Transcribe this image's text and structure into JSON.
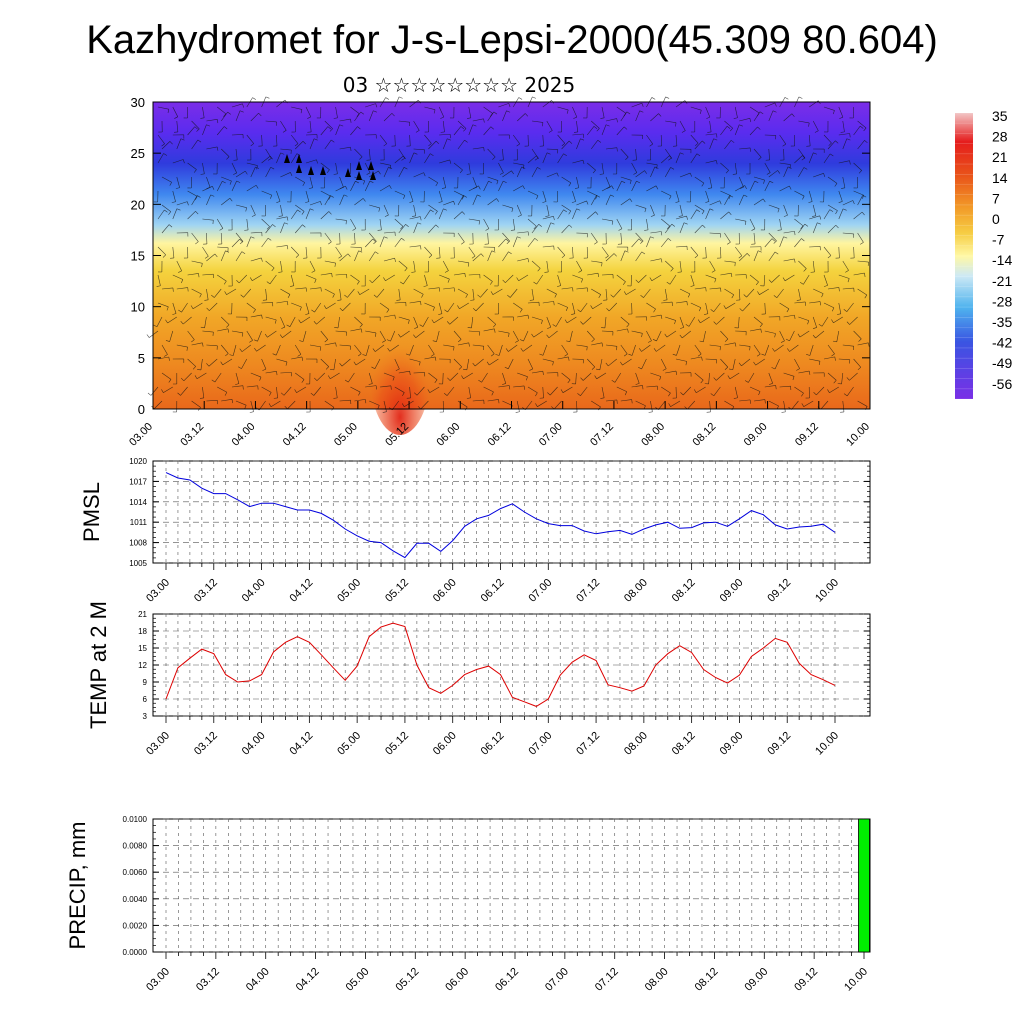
{
  "title": "Kazhydromet for J-s-Lepsi-2000(45.309 80.604)",
  "subtitle": "03 ☆☆☆☆☆☆☆☆ 2025",
  "time_labels": [
    "03.00",
    "03.12",
    "04.00",
    "04.12",
    "05.00",
    "05.12",
    "06.00",
    "06.12",
    "07.00",
    "07.12",
    "08.00",
    "08.12",
    "09.00",
    "09.12",
    "10.00"
  ],
  "colors": {
    "pmsl_line": "#0000dd",
    "temp_line": "#dd0000",
    "precip_bar": "#00ee00"
  },
  "chart_data": [
    {
      "type": "heatmap",
      "title": "",
      "xlabel": "",
      "ylabel": "",
      "x": [
        "03.00",
        "03.12",
        "04.00",
        "04.12",
        "05.00",
        "05.12",
        "06.00",
        "06.12",
        "07.00",
        "07.12",
        "08.00",
        "08.12",
        "09.00",
        "09.12",
        "10.00"
      ],
      "ylim": [
        0,
        30
      ],
      "yticks": [
        0,
        5,
        10,
        15,
        20,
        25,
        30
      ],
      "colorbar": {
        "labels": [
          "35",
          "28",
          "21",
          "14",
          "7",
          "0",
          "-7",
          "-14",
          "-21",
          "-28",
          "-35",
          "-42",
          "-49",
          "-56"
        ],
        "placement": "right"
      },
      "overlay": "wind barbs"
    },
    {
      "type": "line",
      "ylabel": "PMSL",
      "ylim": [
        1005,
        1020
      ],
      "yticks": [
        1005,
        1008,
        1011,
        1014,
        1017,
        1020
      ],
      "grid": true,
      "x": [
        "03.00",
        "03.03",
        "03.06",
        "03.09",
        "03.12",
        "03.15",
        "03.18",
        "03.21",
        "04.00",
        "04.03",
        "04.06",
        "04.09",
        "04.12",
        "04.15",
        "04.18",
        "04.21",
        "05.00",
        "05.03",
        "05.06",
        "05.09",
        "05.12",
        "05.15",
        "05.18",
        "05.21",
        "06.00",
        "06.03",
        "06.06",
        "06.09",
        "06.12",
        "06.15",
        "06.18",
        "06.21",
        "07.00",
        "07.03",
        "07.06",
        "07.09",
        "07.12",
        "07.15",
        "07.18",
        "07.21",
        "08.00",
        "08.03",
        "08.06",
        "08.09",
        "08.12",
        "08.15",
        "08.18",
        "08.21",
        "09.00",
        "09.03",
        "09.06",
        "09.09",
        "09.12",
        "09.15",
        "09.18",
        "09.21",
        "10.00"
      ],
      "series": [
        {
          "values": [
            1018.3,
            1017.5,
            1017.2,
            1016.0,
            1015.2,
            1015.2,
            1014.3,
            1013.3,
            1013.8,
            1013.8,
            1013.3,
            1012.8,
            1012.8,
            1012.3,
            1011.3,
            1010.0,
            1009.0,
            1008.2,
            1008.0,
            1006.8,
            1005.8,
            1007.9,
            1007.9,
            1006.7,
            1008.3,
            1010.4,
            1011.5,
            1012.0,
            1013.0,
            1013.7,
            1012.5,
            1011.5,
            1010.8,
            1010.5,
            1010.5,
            1009.7,
            1009.3,
            1009.6,
            1009.8,
            1009.2,
            1010.0,
            1010.6,
            1011.0,
            1010.1,
            1010.2,
            1010.9,
            1011.0,
            1010.4,
            1011.5,
            1012.7,
            1012.1,
            1010.6,
            1010.0,
            1010.3,
            1010.4,
            1010.7,
            1009.5
          ]
        }
      ]
    },
    {
      "type": "line",
      "ylabel": "TEMP at 2 M",
      "ylim": [
        3,
        21
      ],
      "yticks": [
        3,
        6,
        9,
        12,
        15,
        18,
        21
      ],
      "grid": true,
      "x": [
        "03.00",
        "03.03",
        "03.06",
        "03.09",
        "03.12",
        "03.15",
        "03.18",
        "03.21",
        "04.00",
        "04.03",
        "04.06",
        "04.09",
        "04.12",
        "04.15",
        "04.18",
        "04.21",
        "05.00",
        "05.03",
        "05.06",
        "05.09",
        "05.12",
        "05.15",
        "05.18",
        "05.21",
        "06.00",
        "06.03",
        "06.06",
        "06.09",
        "06.12",
        "06.15",
        "06.18",
        "06.21",
        "07.00",
        "07.03",
        "07.06",
        "07.09",
        "07.12",
        "07.15",
        "07.18",
        "07.21",
        "08.00",
        "08.03",
        "08.06",
        "08.09",
        "08.12",
        "08.15",
        "08.18",
        "08.21",
        "09.00",
        "09.03",
        "09.06",
        "09.09",
        "09.12",
        "09.15",
        "09.18",
        "09.21",
        "10.00"
      ],
      "series": [
        {
          "values": [
            6.0,
            11.5,
            13.2,
            14.8,
            14.0,
            10.3,
            9.0,
            9.2,
            10.3,
            14.3,
            16.0,
            17.0,
            16.0,
            13.8,
            11.5,
            9.3,
            11.8,
            17.0,
            18.7,
            19.4,
            18.8,
            12.0,
            8.0,
            7.0,
            8.4,
            10.3,
            11.2,
            11.8,
            10.3,
            6.3,
            5.5,
            4.7,
            6.0,
            10.2,
            12.5,
            13.8,
            12.8,
            8.5,
            8.0,
            7.4,
            8.3,
            12.0,
            14.0,
            15.4,
            14.2,
            11.2,
            9.8,
            8.8,
            10.2,
            13.5,
            15.0,
            16.7,
            16.0,
            12.3,
            10.3,
            9.4,
            8.4
          ]
        }
      ]
    },
    {
      "type": "bar",
      "ylabel": "PRECIP, mm",
      "ylim": [
        0,
        0.01
      ],
      "yticks": [
        "0.0000",
        "0.0020",
        "0.0040",
        "0.0060",
        "0.0080",
        "0.0100"
      ],
      "grid": true,
      "categories": [
        "03.00",
        "03.12",
        "04.00",
        "04.12",
        "05.00",
        "05.12",
        "06.00",
        "06.12",
        "07.00",
        "07.12",
        "08.00",
        "08.12",
        "09.00",
        "09.12",
        "10.00"
      ],
      "series": [
        {
          "values": [
            0,
            0,
            0,
            0,
            0,
            0,
            0,
            0,
            0,
            0,
            0,
            0,
            0,
            0,
            0.01
          ]
        }
      ]
    }
  ]
}
